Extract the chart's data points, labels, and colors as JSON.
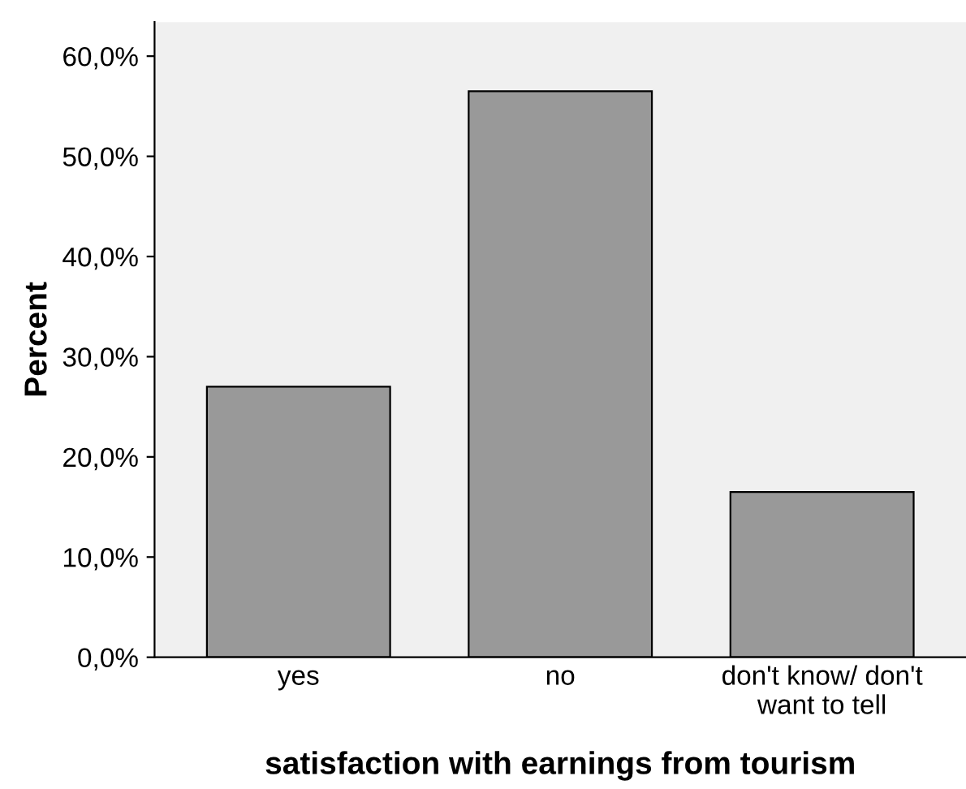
{
  "chart_data": {
    "type": "bar",
    "xlabel": "satisfaction with earnings from tourism",
    "ylabel": "Percent",
    "categories": [
      "yes",
      "no",
      "don't know/ don't\nwant to tell"
    ],
    "values": [
      27.0,
      56.5,
      16.5
    ],
    "color": "#999999",
    "ylim": [
      0,
      63.4
    ],
    "yticks": [
      {
        "value": 0,
        "label": "0,0%"
      },
      {
        "value": 10,
        "label": "10,0%"
      },
      {
        "value": 20,
        "label": "20,0%"
      },
      {
        "value": 30,
        "label": "30,0%"
      },
      {
        "value": 40,
        "label": "40,0%"
      },
      {
        "value": 50,
        "label": "50,0%"
      },
      {
        "value": 60,
        "label": "60,0%"
      }
    ],
    "grid": false,
    "legend": false
  }
}
